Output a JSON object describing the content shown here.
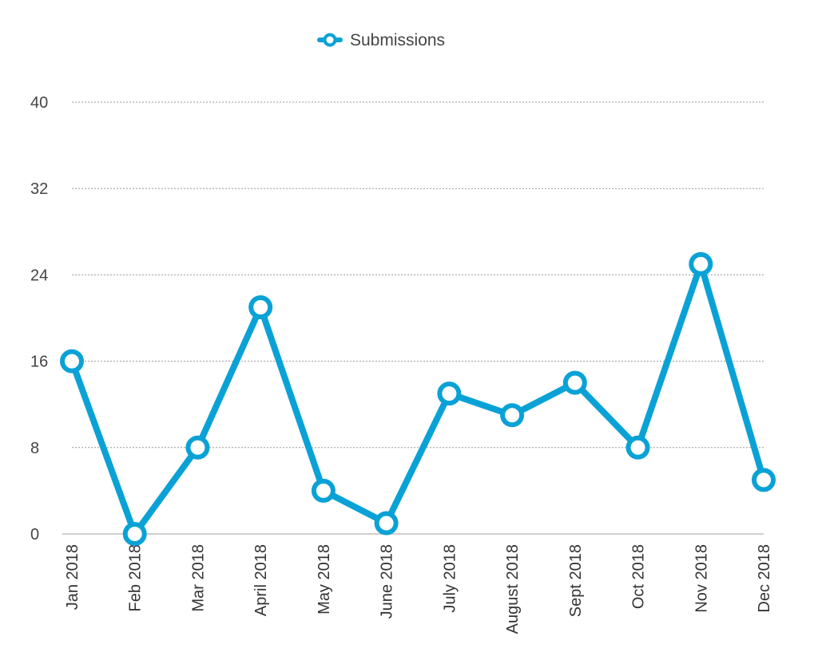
{
  "chart_data": {
    "type": "line",
    "categories": [
      "Jan 2018",
      "Feb 2018",
      "Mar 2018",
      "April 2018",
      "May 2018",
      "June 2018",
      "July 2018",
      "August 2018",
      "Sept 2018",
      "Oct 2018",
      "Nov 2018",
      "Dec 2018"
    ],
    "series": [
      {
        "name": "Submissions",
        "values": [
          16,
          0,
          8,
          21,
          4,
          1,
          13,
          11,
          14,
          8,
          25,
          5
        ],
        "color": "#0aa2d6"
      }
    ],
    "yticks": [
      "0",
      "8",
      "16",
      "24",
      "32",
      "40"
    ],
    "ylim": [
      0,
      40
    ],
    "grid": true,
    "legend_position": "top-center"
  }
}
